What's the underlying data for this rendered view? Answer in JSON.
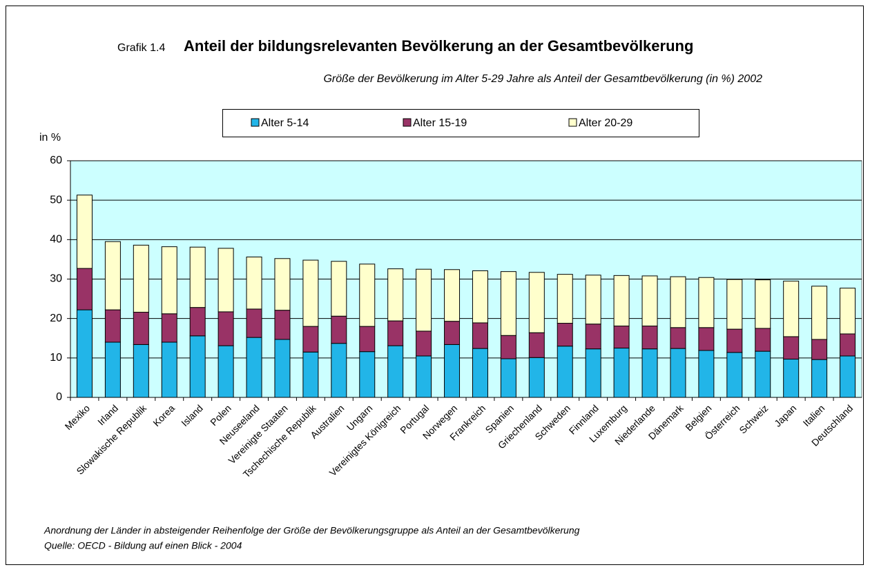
{
  "chart_data": {
    "type": "stacked_bar",
    "figure_label": "Grafik 1.4",
    "title": "Anteil der bildungsrelevanten Bevölkerung an der Gesamtbevölkerung",
    "subtitle": "Größe der Bevölkerung im Alter 5-29 Jahre als Anteil der Gesamtbevölkerung (in %) 2002",
    "y_axis_label": "in %",
    "categories": [
      "Mexiko",
      "Irland",
      "Slowakische Republik",
      "Korea",
      "Island",
      "Polen",
      "Neuseeland",
      "Vereinigte Staaten",
      "Tschechische Republik",
      "Australien",
      "Ungarn",
      "Vereinigtes Königreich",
      "Portugal",
      "Norwegen",
      "Frankreich",
      "Spanien",
      "Griechenland",
      "Schweden",
      "Finnland",
      "Luxemburg",
      "Niederlande",
      "Dänemark",
      "Belgien",
      "Österreich",
      "Schweiz",
      "Japan",
      "Italien",
      "Deutschland"
    ],
    "series": [
      {
        "name": "Alter 5-14",
        "color": "#22b5e8",
        "values": [
          22.2,
          14.0,
          13.4,
          14.0,
          15.6,
          13.1,
          15.2,
          14.7,
          11.5,
          13.7,
          11.6,
          13.1,
          10.5,
          13.4,
          12.4,
          9.8,
          10.1,
          13.0,
          12.3,
          12.5,
          12.3,
          12.4,
          11.9,
          11.4,
          11.7,
          9.7,
          9.6,
          10.5
        ]
      },
      {
        "name": "Alter 15-19",
        "color": "#993366",
        "values": [
          10.5,
          8.2,
          8.2,
          7.2,
          7.2,
          8.6,
          7.2,
          7.4,
          6.5,
          6.9,
          6.4,
          6.3,
          6.3,
          5.9,
          6.5,
          5.9,
          6.3,
          5.8,
          6.3,
          5.6,
          5.8,
          5.3,
          5.8,
          5.9,
          5.8,
          5.7,
          5.1,
          5.6
        ]
      },
      {
        "name": "Alter 20-29",
        "color": "#ffffcc",
        "values": [
          18.6,
          17.3,
          17.0,
          17.0,
          15.3,
          16.1,
          13.2,
          13.1,
          16.8,
          13.9,
          15.8,
          13.2,
          15.7,
          13.1,
          13.2,
          16.2,
          15.3,
          12.4,
          12.4,
          12.8,
          12.7,
          12.9,
          12.7,
          12.6,
          12.3,
          14.1,
          13.5,
          11.6
        ]
      }
    ],
    "ylim": [
      0,
      60
    ],
    "yticks": [
      0,
      10,
      20,
      30,
      40,
      50,
      60
    ],
    "grid": true,
    "plot_background": "#ccffff",
    "notes": [
      "Anordnung der Länder in absteigender Reihenfolge der Größe der Bevölkerungsgruppe als Anteil an der Gesamtbevölkerung",
      "Quelle: OECD - Bildung auf einen Blick - 2004"
    ]
  }
}
